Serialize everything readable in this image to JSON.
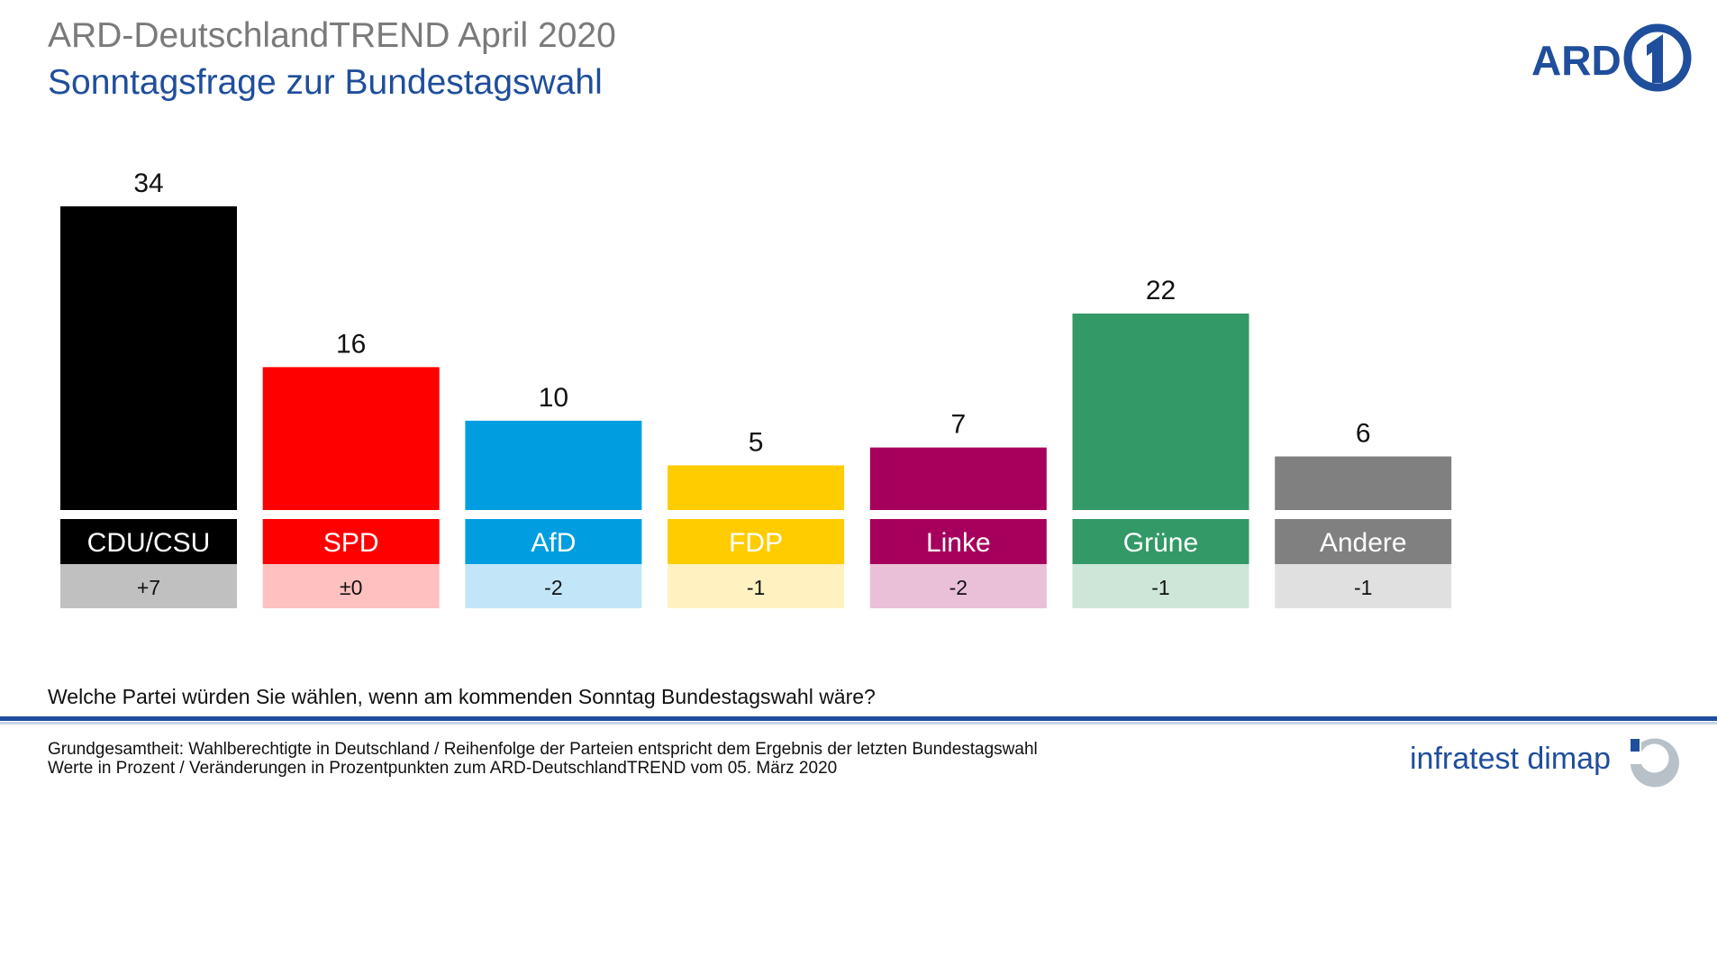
{
  "header": {
    "title": "ARD-DeutschlandTREND April 2020",
    "subtitle": "Sonntagsfrage zur Bundestagswahl"
  },
  "logos": {
    "ard": "ARD",
    "ard_icon": "ard-one-icon",
    "dimap": "infratest dimap",
    "dimap_icon": "dimap-logo-icon"
  },
  "chart_data": {
    "type": "bar",
    "title": "Sonntagsfrage zur Bundestagswahl",
    "categories": [
      "CDU/CSU",
      "SPD",
      "AfD",
      "FDP",
      "Linke",
      "Grüne",
      "Andere"
    ],
    "values": [
      34,
      16,
      10,
      5,
      7,
      22,
      6
    ],
    "changes": [
      "+7",
      "±0",
      "-2",
      "-1",
      "-2",
      "-1",
      "-1"
    ],
    "colors": [
      "#000000",
      "#ff0000",
      "#009ee0",
      "#ffcc00",
      "#a6005c",
      "#339966",
      "#808080"
    ],
    "change_colors": [
      "#c0c0c0",
      "#ffc0c0",
      "#c2e6f7",
      "#fff1c0",
      "#eac0d6",
      "#cde6d8",
      "#e0e0e0"
    ],
    "ylim": [
      0,
      34
    ],
    "xlabel": "",
    "ylabel": "",
    "grid": false,
    "legend": "none"
  },
  "footer": {
    "question": "Welche Partei würden Sie wählen, wenn am kommenden Sonntag Bundestagswahl wäre?",
    "line1": "Grundgesamtheit: Wahlberechtigte in Deutschland  / Reihenfolge der Parteien entspricht dem Ergebnis der letzten Bundestagswahl",
    "line2": "Werte in Prozent / Veränderungen in Prozentpunkten zum ARD-DeutschlandTREND vom 05. März 2020",
    "rule_color": "#1f4e9c",
    "rule_light_color": "#c8d4e6"
  }
}
